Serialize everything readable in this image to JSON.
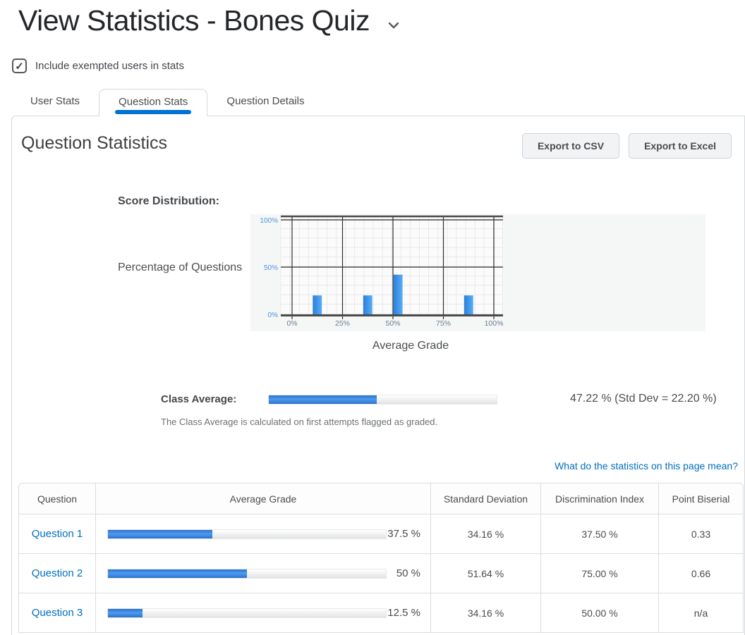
{
  "page": {
    "title": "View Statistics - Bones Quiz",
    "include_exempted_label": "Include exempted users in stats",
    "include_exempted_checked": true,
    "checkmark": "✓"
  },
  "tabs": [
    {
      "label": "User Stats",
      "active": false
    },
    {
      "label": "Question Stats",
      "active": true
    },
    {
      "label": "Question Details",
      "active": false
    }
  ],
  "panel": {
    "heading": "Question Statistics",
    "export_csv_label": "Export to CSV",
    "export_excel_label": "Export to Excel",
    "score_distribution_label": "Score Distribution:",
    "class_average": {
      "label": "Class Average:",
      "value_percent": 47.22,
      "value_text": "47.22 % (Std Dev = 22.20 %)",
      "note": "The Class Average is calculated on first attempts flagged as graded."
    },
    "stats_link_label": "What do the statistics on this page mean?"
  },
  "chart_data": {
    "type": "bar",
    "title": "Score Distribution",
    "xlabel": "Average Grade",
    "ylabel": "Percentage of Questions",
    "x_ticks": [
      "0%",
      "25%",
      "50%",
      "75%",
      "100%"
    ],
    "y_ticks": [
      "0%",
      "50%",
      "100%"
    ],
    "xlim": [
      0,
      100
    ],
    "ylim": [
      0,
      100
    ],
    "grid": true,
    "bar_width_percent": 4.5,
    "bars": [
      {
        "x": 12.5,
        "height": 20
      },
      {
        "x": 37.5,
        "height": 20
      },
      {
        "x": 52.5,
        "height": 42
      },
      {
        "x": 87.5,
        "height": 20
      }
    ]
  },
  "table": {
    "columns": [
      "Question",
      "Average Grade",
      "Standard Deviation",
      "Discrimination Index",
      "Point Biserial"
    ],
    "rows": [
      {
        "question": "Question 1",
        "average_grade_percent": 37.5,
        "average_grade_text": "37.5 %",
        "std_dev": "34.16 %",
        "discrimination_index": "37.50 %",
        "point_biserial": "0.33"
      },
      {
        "question": "Question 2",
        "average_grade_percent": 50,
        "average_grade_text": "50 %",
        "std_dev": "51.64 %",
        "discrimination_index": "75.00 %",
        "point_biserial": "0.66"
      },
      {
        "question": "Question 3",
        "average_grade_percent": 12.5,
        "average_grade_text": "12.5 %",
        "std_dev": "34.16 %",
        "discrimination_index": "50.00 %",
        "point_biserial": "n/a"
      }
    ]
  },
  "colors": {
    "accent_blue": "#0072d6",
    "link_blue": "#006fbf",
    "bar_blue_dark": "#2b7fd9",
    "bar_blue_light": "#57adf8",
    "axis_label_blue": "#4f94dd",
    "axis_tick_gray": "#6e7c90",
    "grid_minor": "#e9e9e9",
    "grid_major": "#2f2f2f",
    "chart_bg": "#f5f6f6",
    "plot_bg": "#fbfbfb"
  }
}
